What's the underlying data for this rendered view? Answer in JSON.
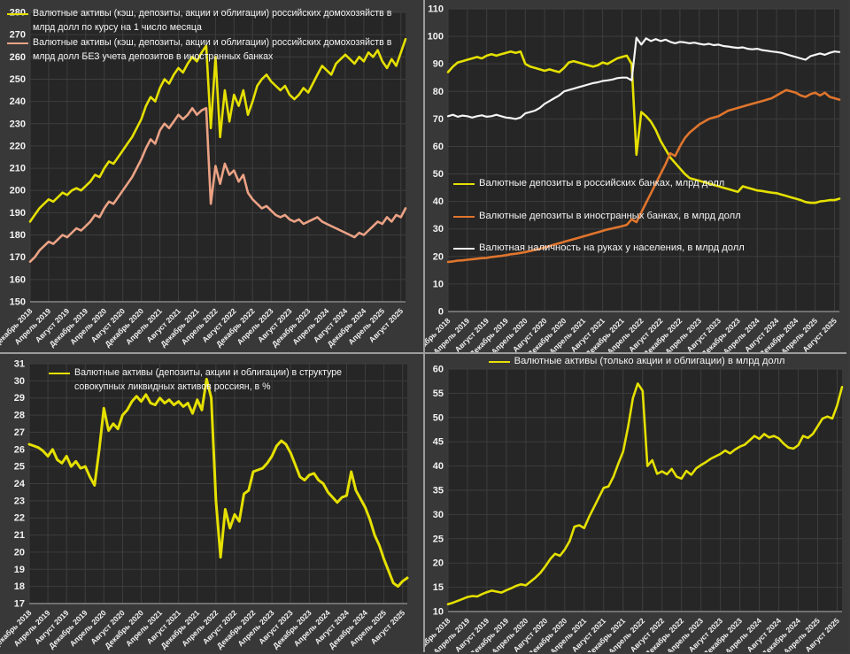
{
  "page": {
    "background": "#3a3a3a",
    "divider_color": "#9c9c9c",
    "plot_bg": "#262626",
    "grid_color": "#3e3e3e",
    "axis_line_color": "#858585",
    "tick_text_color": "#f2f2f2"
  },
  "x_tick_labels": [
    "Декабрь 2018",
    "Апрель 2019",
    "Август 2019",
    "Декабрь 2019",
    "Апрель 2020",
    "Август 2020",
    "Декабрь 2020",
    "Апрель 2021",
    "Август 2021",
    "Декабрь 2021",
    "Апрель 2022",
    "Август 2022",
    "Декабрь 2022",
    "Апрель 2023",
    "Август 2023",
    "Декабрь 2023",
    "Апрель 2024",
    "Август 2024",
    "Декабрь 2024",
    "Апрель 2025",
    "Август 2025"
  ],
  "x_tick_every": 4,
  "chart_data": [
    {
      "type": "line",
      "name": "fx-assets-total",
      "ylim": [
        150,
        280
      ],
      "ytick_step": 10,
      "legend_position": "top-left",
      "legend": [
        {
          "label": "Валютные активы (кэш, депозиты, акции и облигации) российских домохозяйств в млрд долл по курсу на 1 число месяца",
          "color": "#e5e000"
        },
        {
          "label": "Валютные активы (кэш, депозиты, акции и облигации) российских домохозяйств в млрд долл БЕЗ учета депозитов в иностранных банках",
          "color": "#eba285"
        }
      ],
      "series": [
        {
          "name": "Валютные активы всего",
          "color": "#e5e000",
          "width": 2.6,
          "values": [
            186,
            189,
            192,
            194,
            196,
            195,
            197,
            199,
            198,
            200,
            201,
            200,
            202,
            204,
            207,
            206,
            210,
            213,
            212,
            215,
            218,
            221,
            224,
            228,
            232,
            238,
            242,
            240,
            246,
            250,
            248,
            252,
            255,
            253,
            257,
            260,
            258,
            262,
            265,
            228,
            260,
            224,
            245,
            231,
            243,
            238,
            245,
            234,
            240,
            247,
            250,
            252,
            249,
            247,
            245,
            247,
            243,
            241,
            243,
            246,
            244,
            248,
            252,
            256,
            254,
            252,
            257,
            259,
            261,
            259,
            257,
            260,
            258,
            262,
            260,
            263,
            258,
            255,
            259,
            256,
            262,
            268
          ]
        },
        {
          "name": "БЕЗ депозитов в иностранных банках",
          "color": "#eba285",
          "width": 2.6,
          "values": [
            168,
            170,
            173,
            175,
            177,
            176,
            178,
            180,
            179,
            181,
            183,
            182,
            184,
            186,
            189,
            188,
            192,
            195,
            194,
            197,
            200,
            203,
            206,
            210,
            214,
            219,
            223,
            221,
            227,
            230,
            228,
            231,
            234,
            232,
            234,
            237,
            234,
            236,
            237,
            194,
            211,
            203,
            212,
            207,
            209,
            204,
            207,
            199,
            196,
            194,
            192,
            193,
            191,
            189,
            188,
            189,
            187,
            186,
            187,
            185,
            186,
            187,
            188,
            186,
            185,
            184,
            183,
            182,
            181,
            180,
            179,
            181,
            180,
            182,
            184,
            186,
            185,
            188,
            186,
            189,
            188,
            192
          ]
        }
      ]
    },
    {
      "type": "line",
      "name": "fx-deposits-and-cash",
      "ylim": [
        0,
        110
      ],
      "ytick_step": 10,
      "legend_position": "middle-left",
      "legend": [
        {
          "label": "Валютные депозиты в российских банках, млрд долл",
          "color": "#e5e000"
        },
        {
          "label": "Валютные депозиты в иностранных банках, в млрд долл",
          "color": "#e0752d"
        },
        {
          "label": "Валютная наличность на руках у населения, в млрд долл",
          "color": "#f5f5f5"
        }
      ],
      "series": [
        {
          "name": "Депозиты в российских банках",
          "color": "#e5e000",
          "width": 2.6,
          "values": [
            87,
            89,
            90.5,
            91,
            91.5,
            92,
            92.5,
            92,
            93,
            93.5,
            93,
            93.5,
            94,
            94.5,
            94,
            94.5,
            90,
            89,
            88.5,
            88,
            87.5,
            88,
            87.5,
            87,
            88.5,
            90.5,
            91,
            90.5,
            90,
            89.5,
            89,
            89.5,
            90.5,
            90,
            91,
            92,
            92.5,
            93,
            90,
            57,
            72.5,
            71,
            69,
            66,
            62,
            59,
            56,
            54,
            52,
            50,
            48.5,
            48,
            47.5,
            47,
            46.5,
            46,
            45.5,
            45,
            44.5,
            44,
            43.5,
            45.5,
            45,
            44.5,
            44,
            43.8,
            43.5,
            43.2,
            43,
            42.5,
            42,
            41.5,
            41,
            40.5,
            39.8,
            39.5,
            39.5,
            40,
            40.2,
            40.5,
            40.5,
            41
          ]
        },
        {
          "name": "Депозиты в иностранных банках",
          "color": "#e0752d",
          "width": 2.6,
          "values": [
            18,
            18.2,
            18.5,
            18.6,
            18.8,
            19,
            19.2,
            19.4,
            19.5,
            19.8,
            20,
            20.2,
            20.5,
            20.8,
            21,
            21.3,
            21.6,
            22,
            22.4,
            22.8,
            23.3,
            23.8,
            24.3,
            24.8,
            25.3,
            25.8,
            26.3,
            26.8,
            27.3,
            27.8,
            28.3,
            28.8,
            29.3,
            29.8,
            30.2,
            30.6,
            31,
            31.5,
            33.5,
            32.5,
            36,
            39.5,
            43,
            46.5,
            50,
            53.5,
            57.5,
            56.5,
            60,
            63,
            65,
            66.5,
            68,
            69,
            70,
            70.5,
            71,
            72,
            73,
            73.5,
            74,
            74.5,
            75,
            75.5,
            76,
            76.5,
            77,
            77.5,
            78.5,
            79.5,
            80.5,
            80,
            79.5,
            78.5,
            78,
            79,
            79.5,
            78.5,
            79.5,
            78,
            77.5,
            77
          ]
        },
        {
          "name": "Наличность на руках",
          "color": "#f5f5f5",
          "width": 2.2,
          "values": [
            71,
            71.5,
            70.8,
            71.2,
            71,
            70.5,
            71,
            71.3,
            70.8,
            71,
            71.5,
            71,
            70.5,
            70.3,
            70,
            70.5,
            72,
            72.5,
            73,
            74,
            75.5,
            76.5,
            77.5,
            78.5,
            80,
            80.5,
            81,
            81.5,
            82,
            82.5,
            83,
            83.3,
            83.8,
            84,
            84.3,
            84.8,
            85,
            85,
            84,
            99.5,
            97,
            99.3,
            98.3,
            99,
            98.3,
            98.8,
            98,
            97.5,
            98,
            97.8,
            97.5,
            97.7,
            97.3,
            97,
            97.3,
            96.8,
            97,
            96.5,
            96.3,
            96,
            95.8,
            96,
            95.5,
            95.3,
            95.5,
            95,
            94.8,
            94.5,
            94.3,
            94,
            93.5,
            93,
            92.5,
            92,
            91.5,
            92.8,
            93.3,
            93.8,
            93.3,
            94,
            94.5,
            94.3
          ]
        }
      ]
    },
    {
      "type": "line",
      "name": "fx-share-of-liquid-assets",
      "ylim": [
        17,
        31
      ],
      "ytick_step": 1,
      "legend_position": "top-left",
      "legend": [
        {
          "label": "Валютные активы (депозиты, акции и облигации) в структуре совокупных ликвидных активов россиян, в %",
          "color": "#e5e000"
        }
      ],
      "series": [
        {
          "name": "Доля валютных активов, %",
          "color": "#e5e000",
          "width": 3,
          "values": [
            26.3,
            26.2,
            26.1,
            25.9,
            25.6,
            26.0,
            25.4,
            25.2,
            25.6,
            25.0,
            25.3,
            24.9,
            25.0,
            24.4,
            23.9,
            26.0,
            28.4,
            27.1,
            27.5,
            27.2,
            28.0,
            28.3,
            28.8,
            29.1,
            28.8,
            29.2,
            28.7,
            28.6,
            29.0,
            28.7,
            28.9,
            28.6,
            28.8,
            28.5,
            28.7,
            28.1,
            28.9,
            28.3,
            30.1,
            29.0,
            23.0,
            19.7,
            22.5,
            21.4,
            22.2,
            21.8,
            23.4,
            23.6,
            24.7,
            24.8,
            24.9,
            25.2,
            25.6,
            26.2,
            26.5,
            26.3,
            25.8,
            25.1,
            24.4,
            24.2,
            24.5,
            24.6,
            24.2,
            24.0,
            23.5,
            23.2,
            22.9,
            23.2,
            23.3,
            24.7,
            23.6,
            23.1,
            22.6,
            21.9,
            21.0,
            20.4,
            19.6,
            18.9,
            18.2,
            18.0,
            18.3,
            18.5
          ]
        }
      ]
    },
    {
      "type": "line",
      "name": "fx-stocks-and-bonds",
      "ylim": [
        10,
        60
      ],
      "ytick_step": 5,
      "legend_position": "top-center",
      "legend": [
        {
          "label": "Валютные активы (только акции и облигации) в млрд долл",
          "color": "#e5e000"
        }
      ],
      "series": [
        {
          "name": "Акции и облигации, млрд долл",
          "color": "#e5e000",
          "width": 2.6,
          "values": [
            11.5,
            11.8,
            12.2,
            12.6,
            13.0,
            13.2,
            13.1,
            13.6,
            14.0,
            14.3,
            14.1,
            13.9,
            14.4,
            14.8,
            15.3,
            15.6,
            15.4,
            16.2,
            17.0,
            18.0,
            19.3,
            20.8,
            21.9,
            21.5,
            22.8,
            24.5,
            27.5,
            27.8,
            27.2,
            29.5,
            31.5,
            33.5,
            35.5,
            35.8,
            37.8,
            40.5,
            43.0,
            48.0,
            54.0,
            57.0,
            55.5,
            40.0,
            41.2,
            38.4,
            38.9,
            38.3,
            39.4,
            37.8,
            37.4,
            39.0,
            38.2,
            39.5,
            40.2,
            40.8,
            41.5,
            42.0,
            42.5,
            43.2,
            42.6,
            43.4,
            44.0,
            44.4,
            45.3,
            46.2,
            45.6,
            46.6,
            45.9,
            46.2,
            45.7,
            44.6,
            43.8,
            43.6,
            44.3,
            46.2,
            45.8,
            46.6,
            48.2,
            49.8,
            50.2,
            49.8,
            52.5,
            56.3
          ]
        }
      ]
    }
  ]
}
